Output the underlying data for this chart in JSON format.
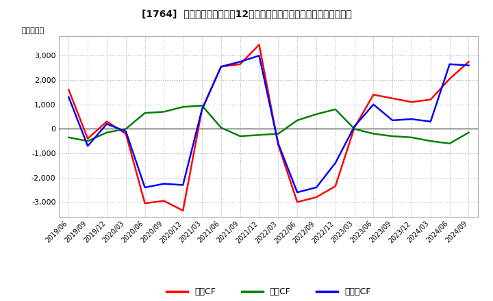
{
  "title": "[1764]  キャッシュフローの12か月移動合計の対前年同期増減額の推移",
  "ylabel": "（百万円）",
  "x_labels": [
    "2019/06",
    "2019/09",
    "2019/12",
    "2020/03",
    "2020/06",
    "2020/09",
    "2020/12",
    "2021/03",
    "2021/06",
    "2021/09",
    "2021/12",
    "2022/03",
    "2022/06",
    "2022/09",
    "2022/12",
    "2023/03",
    "2023/06",
    "2023/09",
    "2023/12",
    "2024/03",
    "2024/06",
    "2024/09"
  ],
  "eigyo_cf": [
    1600,
    -400,
    300,
    -200,
    -3050,
    -2950,
    -3350,
    800,
    2550,
    2650,
    3450,
    -650,
    -3000,
    -2800,
    -2350,
    50,
    1400,
    1250,
    1100,
    1200,
    2050,
    2750
  ],
  "toshi_cf": [
    -350,
    -500,
    -150,
    0,
    650,
    700,
    900,
    950,
    50,
    -300,
    -250,
    -200,
    350,
    600,
    800,
    0,
    -200,
    -300,
    -350,
    -500,
    -600,
    -150
  ],
  "free_cf": [
    1300,
    -700,
    200,
    -100,
    -2400,
    -2250,
    -2300,
    800,
    2550,
    2750,
    3000,
    -600,
    -2600,
    -2400,
    -1400,
    100,
    1000,
    350,
    400,
    300,
    2650,
    2600
  ],
  "eigyo_color": "#ff0000",
  "toshi_color": "#008000",
  "free_color": "#0000ff",
  "ylim": [
    -3600,
    3800
  ],
  "yticks": [
    -3000,
    -2000,
    -1000,
    0,
    1000,
    2000,
    3000
  ],
  "bg_color": "#ffffff",
  "grid_color": "#aaaaaa",
  "eigyo_label": "営業CF",
  "toshi_label": "投資CF",
  "free_label": "フリーCF"
}
